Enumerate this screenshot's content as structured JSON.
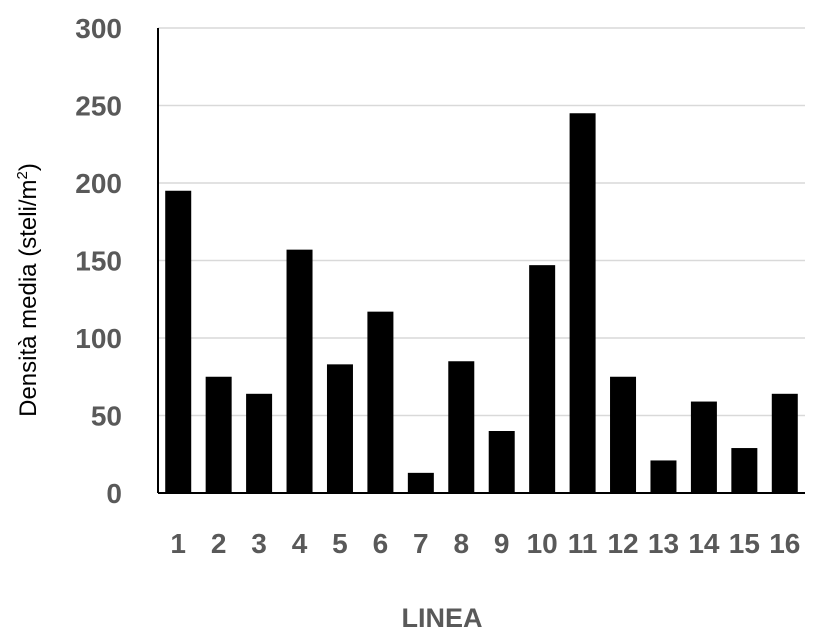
{
  "chart_data": {
    "type": "bar",
    "categories": [
      "1",
      "2",
      "3",
      "4",
      "5",
      "6",
      "7",
      "8",
      "9",
      "10",
      "11",
      "12",
      "13",
      "14",
      "15",
      "16"
    ],
    "values": [
      195,
      75,
      64,
      157,
      83,
      117,
      13,
      85,
      40,
      147,
      245,
      75,
      21,
      59,
      29,
      64
    ],
    "title": "",
    "xlabel": "LINEA",
    "ylabel_text": "Densità media (steli/m",
    "ylabel_sup": "2",
    "ylabel_close": ")",
    "ylim": [
      0,
      300
    ],
    "yticks": [
      "0",
      "50",
      "100",
      "150",
      "200",
      "250",
      "300"
    ],
    "grid": true,
    "bar_color": "#000000",
    "grid_color": "#d9d9d9"
  }
}
